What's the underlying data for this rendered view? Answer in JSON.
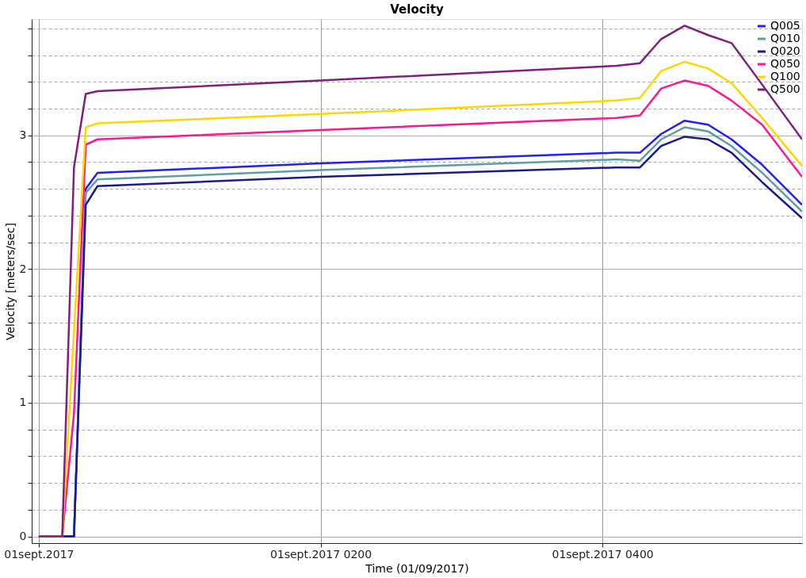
{
  "chart_data": {
    "type": "line",
    "title": "Velocity",
    "xlabel": "Time (01/09/2017)",
    "ylabel": "Velocity [meters/sec]",
    "xlim": [
      "2017-08-31T23:57",
      "2017-09-01T05:25"
    ],
    "ylim": [
      -0.05,
      3.87
    ],
    "xticks": [
      {
        "value": "2017-09-01T00:00",
        "label": "01sept.2017"
      },
      {
        "value": "2017-09-01T02:00",
        "label": "01sept.2017 0200"
      },
      {
        "value": "2017-09-01T04:00",
        "label": "01sept.2017 0400"
      }
    ],
    "yticks": [
      0,
      {
        "value": 0.2,
        "label": null
      },
      {
        "value": 0.4,
        "label": null
      },
      {
        "value": 0.6,
        "label": null
      },
      {
        "value": 0.8,
        "label": null
      },
      1,
      {
        "value": 1.2,
        "label": null
      },
      {
        "value": 1.4,
        "label": null
      },
      {
        "value": 1.6,
        "label": null
      },
      {
        "value": 1.8,
        "label": null
      },
      2,
      {
        "value": 2.2,
        "label": null
      },
      {
        "value": 2.4,
        "label": null
      },
      {
        "value": 2.6,
        "label": null
      },
      {
        "value": 2.8,
        "label": null
      },
      3,
      {
        "value": 3.2,
        "label": null
      },
      {
        "value": 3.4,
        "label": null
      },
      {
        "value": 3.6,
        "label": null
      },
      {
        "value": 3.8,
        "label": null
      }
    ],
    "grid": true,
    "legend": "top right",
    "marker": "none",
    "line_style": "solid",
    "series": [
      {
        "name": "Q005",
        "color": "#1f1fff",
        "x": [
          "2017-09-01T00:00",
          "2017-09-01T00:15",
          "2017-09-01T00:20",
          "2017-09-01T00:25",
          "2017-09-01T02:00",
          "2017-09-01T04:06",
          "2017-09-01T04:16",
          "2017-09-01T04:25",
          "2017-09-01T04:35",
          "2017-09-01T04:45",
          "2017-09-01T04:55",
          "2017-09-01T05:08",
          "2017-09-01T05:25"
        ],
        "values": [
          0,
          0,
          2.6,
          2.72,
          2.79,
          2.87,
          2.87,
          3.01,
          3.11,
          3.08,
          2.97,
          2.78,
          2.48
        ]
      },
      {
        "name": "Q010",
        "color": "#5f9ea0",
        "x": [
          "2017-09-01T00:00",
          "2017-09-01T00:15",
          "2017-09-01T00:20",
          "2017-09-01T00:25",
          "2017-09-01T02:00",
          "2017-09-01T04:06",
          "2017-09-01T04:16",
          "2017-09-01T04:25",
          "2017-09-01T04:35",
          "2017-09-01T04:45",
          "2017-09-01T04:55",
          "2017-09-01T05:08",
          "2017-09-01T05:25"
        ],
        "values": [
          0,
          0,
          2.57,
          2.67,
          2.74,
          2.82,
          2.81,
          2.97,
          3.06,
          3.03,
          2.92,
          2.72,
          2.43
        ]
      },
      {
        "name": "Q020",
        "color": "#1a1a8c",
        "x": [
          "2017-09-01T00:00",
          "2017-09-01T00:15",
          "2017-09-01T00:20",
          "2017-09-01T00:25",
          "2017-09-01T02:00",
          "2017-09-01T04:06",
          "2017-09-01T04:16",
          "2017-09-01T04:25",
          "2017-09-01T04:35",
          "2017-09-01T04:45",
          "2017-09-01T04:55",
          "2017-09-01T05:08",
          "2017-09-01T05:25"
        ],
        "values": [
          0,
          0,
          2.48,
          2.62,
          2.69,
          2.76,
          2.76,
          2.92,
          2.99,
          2.97,
          2.87,
          2.65,
          2.38
        ]
      },
      {
        "name": "Q050",
        "color": "#ff1493",
        "x": [
          "2017-09-01T00:00",
          "2017-09-01T00:10",
          "2017-09-01T00:15",
          "2017-09-01T00:20",
          "2017-09-01T00:25",
          "2017-09-01T02:00",
          "2017-09-01T04:06",
          "2017-09-01T04:16",
          "2017-09-01T04:25",
          "2017-09-01T04:35",
          "2017-09-01T04:45",
          "2017-09-01T04:55",
          "2017-09-01T05:08",
          "2017-09-01T05:25"
        ],
        "values": [
          0,
          0,
          0.92,
          2.93,
          2.97,
          3.04,
          3.13,
          3.15,
          3.35,
          3.41,
          3.37,
          3.26,
          3.08,
          2.69
        ]
      },
      {
        "name": "Q100",
        "color": "#ffd700",
        "x": [
          "2017-09-01T00:00",
          "2017-09-01T00:10",
          "2017-09-01T00:20",
          "2017-09-01T00:25",
          "2017-09-01T02:00",
          "2017-09-01T04:06",
          "2017-09-01T04:16",
          "2017-09-01T04:25",
          "2017-09-01T04:35",
          "2017-09-01T04:45",
          "2017-09-01T04:55",
          "2017-09-01T05:08",
          "2017-09-01T05:25"
        ],
        "values": [
          0,
          0,
          3.06,
          3.09,
          3.16,
          3.26,
          3.28,
          3.48,
          3.55,
          3.5,
          3.39,
          3.13,
          2.77
        ]
      },
      {
        "name": "Q500",
        "color": "#7f1f7f",
        "x": [
          "2017-09-01T00:00",
          "2017-09-01T00:10",
          "2017-09-01T00:15",
          "2017-09-01T00:20",
          "2017-09-01T00:25",
          "2017-09-01T02:00",
          "2017-09-01T04:06",
          "2017-09-01T04:16",
          "2017-09-01T04:25",
          "2017-09-01T04:35",
          "2017-09-01T04:45",
          "2017-09-01T04:55",
          "2017-09-01T05:08",
          "2017-09-01T05:25"
        ],
        "values": [
          0,
          0,
          2.76,
          3.31,
          3.33,
          3.41,
          3.52,
          3.54,
          3.72,
          3.82,
          3.75,
          3.69,
          3.38,
          2.97
        ]
      }
    ]
  }
}
